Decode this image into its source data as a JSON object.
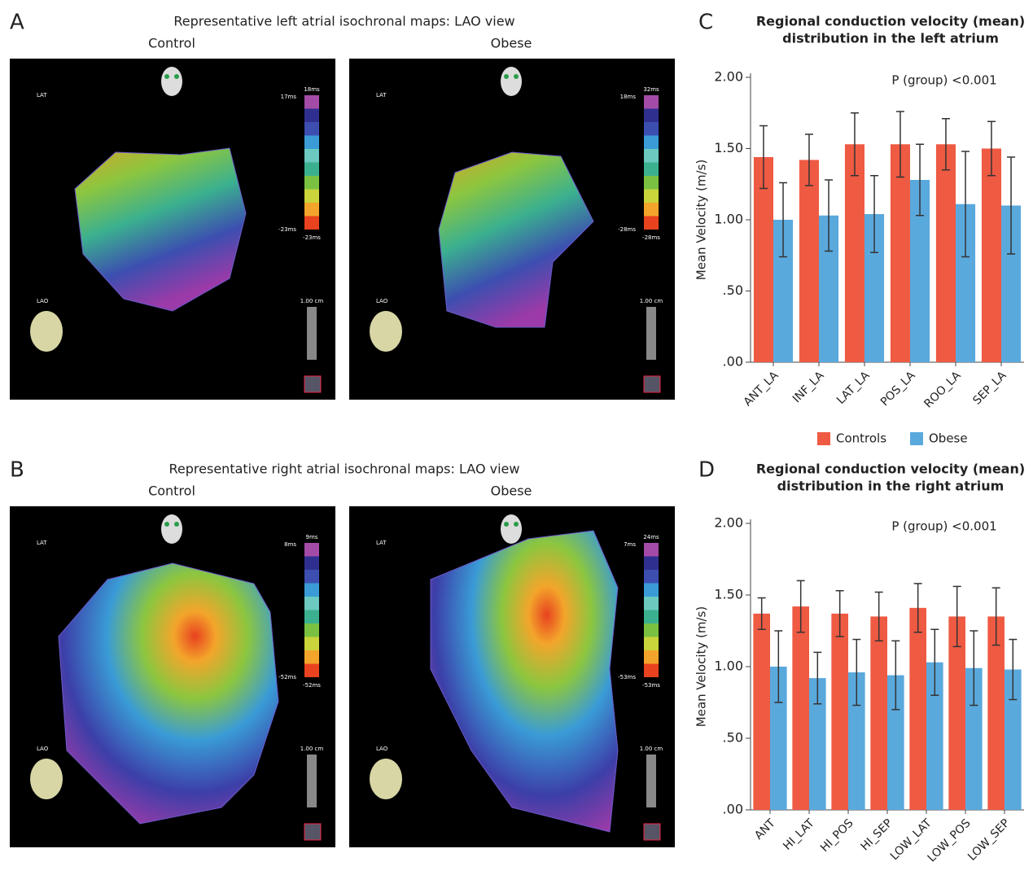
{
  "figure": {
    "panels": [
      {
        "letter": "A",
        "title": "Representative left atrial isochronal maps: LAO view",
        "maps": [
          {
            "group": "Control",
            "lat": "LAT",
            "lao": "LAO",
            "scale": "1.00 cm",
            "scale_top": "18ms",
            "marker_top": "17ms",
            "marker_bottom": "-23ms",
            "scale_bottom": "-23ms"
          },
          {
            "group": "Obese",
            "lat": "LAT",
            "lao": "LAO",
            "scale": "1.00 cm",
            "scale_top": "32ms",
            "marker_top": "18ms",
            "marker_bottom": "-28ms",
            "scale_bottom": "-28ms"
          }
        ]
      },
      {
        "letter": "B",
        "title": "Representative right atrial isochronal maps: LAO view",
        "maps": [
          {
            "group": "Control",
            "lat": "LAT",
            "lao": "LAO",
            "scale": "1.00 cm",
            "scale_top": "9ms",
            "marker_top": "8ms",
            "marker_bottom": "-52ms",
            "scale_bottom": "-52ms"
          },
          {
            "group": "Obese",
            "lat": "LAT",
            "lao": "LAO",
            "scale": "1.00 cm",
            "scale_top": "24ms",
            "marker_top": "7ms",
            "marker_bottom": "-53ms",
            "scale_bottom": "-53ms"
          }
        ]
      }
    ]
  },
  "chart_data": [
    {
      "type": "bar",
      "panel_label": "C",
      "title": [
        "Regional conduction velocity (mean)",
        "distribution in the left atrium"
      ],
      "annotation": "P (group) <0.001",
      "y_label": "Mean Velocity (m/s)",
      "categories": [
        "ANT_LA",
        "INF_LA",
        "LAT_LA",
        "POS_LA",
        "ROO_LA",
        "SEP_LA"
      ],
      "series": [
        {
          "name": "Controls",
          "color": "#ef5a43",
          "values": [
            1.44,
            1.42,
            1.53,
            1.53,
            1.53,
            1.5
          ],
          "errors": [
            0.22,
            0.18,
            0.22,
            0.23,
            0.18,
            0.19
          ]
        },
        {
          "name": "Obese",
          "color": "#5aa9dd",
          "values": [
            1.0,
            1.03,
            1.04,
            1.28,
            1.11,
            1.1
          ],
          "errors": [
            0.26,
            0.25,
            0.27,
            0.25,
            0.37,
            0.34
          ]
        }
      ],
      "ylim": [
        0,
        2
      ],
      "yticks": [
        {
          "value": 0,
          "label": ".00"
        },
        {
          "value": 0.5,
          "label": ".50"
        },
        {
          "value": 1,
          "label": "1.00"
        },
        {
          "value": 1.5,
          "label": "1.50"
        },
        {
          "value": 2,
          "label": "2.00"
        }
      ],
      "legend": "bottom"
    },
    {
      "type": "bar",
      "panel_label": "D",
      "title": [
        "Regional conduction velocity (mean)",
        "distribution in the right atrium"
      ],
      "annotation": "P (group) <0.001",
      "y_label": "Mean Velocity (m/s)",
      "categories": [
        "ANT",
        "HI_LAT",
        "HI_POS",
        "HI_SEP",
        "LOW_LAT",
        "LOW_POS",
        "LOW_SEP"
      ],
      "series": [
        {
          "color": "#ef5a43",
          "values": [
            1.37,
            1.42,
            1.37,
            1.35,
            1.41,
            1.35,
            1.35
          ],
          "errors": [
            0.11,
            0.18,
            0.16,
            0.17,
            0.17,
            0.21,
            0.2
          ]
        },
        {
          "color": "#5aa9dd",
          "values": [
            1.0,
            0.92,
            0.96,
            0.94,
            1.03,
            0.99,
            0.98
          ],
          "errors": [
            0.25,
            0.18,
            0.23,
            0.24,
            0.23,
            0.26,
            0.21
          ]
        }
      ],
      "ylim": [
        0,
        2
      ],
      "yticks": [
        {
          "value": 0,
          "label": ".00"
        },
        {
          "value": 0.5,
          "label": ".50"
        },
        {
          "value": 1,
          "label": "1.00"
        },
        {
          "value": 1.5,
          "label": "1.50"
        },
        {
          "value": 2,
          "label": "2.00"
        }
      ]
    }
  ]
}
